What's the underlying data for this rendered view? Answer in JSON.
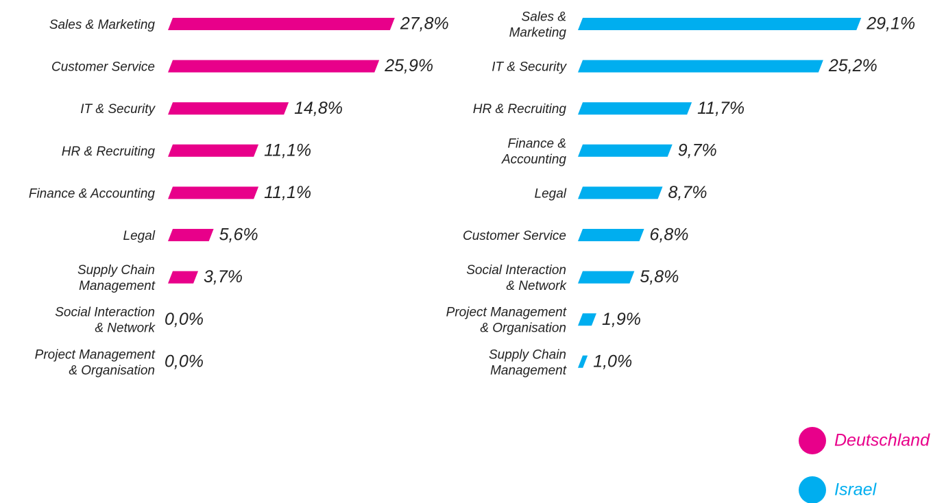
{
  "chart_data": [
    {
      "type": "bar",
      "categories": [
        "Sales & Marketing",
        "Customer Service",
        "IT & Security",
        "HR & Recruiting",
        "Finance & Accounting",
        "Legal",
        "Supply Chain\nManagement",
        "Social Interaction\n& Network",
        "Project Management\n& Organisation"
      ],
      "series": [
        {
          "name": "Deutschland",
          "color": "#e8008a",
          "values": [
            27.8,
            25.9,
            14.8,
            11.1,
            11.1,
            5.6,
            3.7,
            0.0,
            0.0
          ],
          "value_labels": [
            "27,8%",
            "25,9%",
            "14,8%",
            "11,1%",
            "11,1%",
            "5,6%",
            "3,7%",
            "0,0%",
            "0,0%"
          ]
        }
      ]
    },
    {
      "type": "bar",
      "categories": [
        "Sales &\nMarketing",
        "IT & Security",
        "HR & Recruiting",
        "Finance &\nAccounting",
        "Legal",
        "Customer Service",
        "Social Interaction\n& Network",
        "Project Management\n& Organisation",
        "Supply Chain\nManagement"
      ],
      "series": [
        {
          "name": "Israel",
          "color": "#00aeef",
          "values": [
            29.1,
            25.2,
            11.7,
            9.7,
            8.7,
            6.8,
            5.8,
            1.9,
            1.0
          ],
          "value_labels": [
            "29,1%",
            "25,2%",
            "11,7%",
            "9,7%",
            "8,7%",
            "6,8%",
            "5,8%",
            "1,9%",
            "1,0%"
          ]
        }
      ]
    }
  ]
}
